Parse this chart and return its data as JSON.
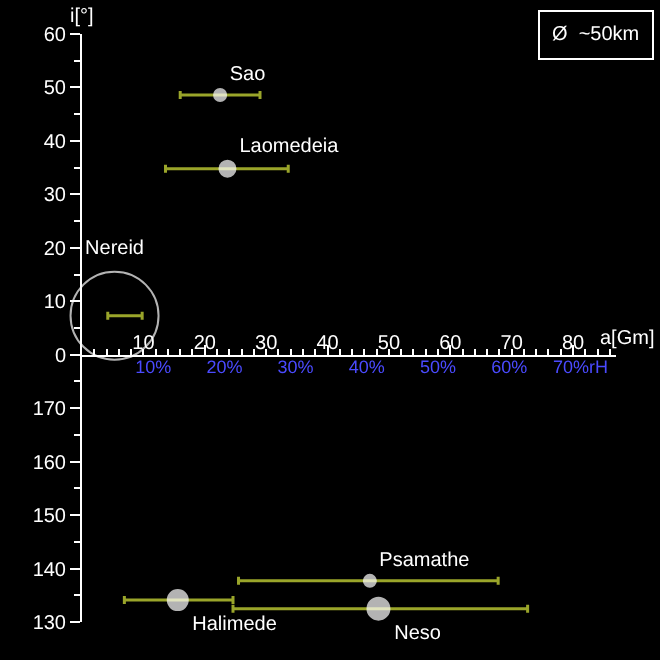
{
  "chart_data": [
    {
      "type": "bubble",
      "ylabel": "i[°]",
      "xlim": [
        0,
        87
      ],
      "ylim": [
        0,
        60
      ],
      "yticks": [
        0,
        10,
        20,
        30,
        40,
        50,
        60
      ],
      "tick_labels": "y",
      "series": [
        {
          "color": "#9aa52a",
          "x": [
            22.5,
            23.7,
            5.3
          ],
          "values": [
            48.6,
            34.8,
            7.3
          ],
          "sizes": [
            0.019,
            0.033,
            1
          ],
          "colors": [
            "#ffffff",
            "#ffffff",
            "#ffffff"
          ],
          "xerrors": [
            [
              16.0,
              29.0
            ],
            [
              13.6,
              33.6
            ],
            [
              4.2,
              9.8
            ]
          ],
          "value_labels": [
            "Sao",
            "Laomedeia",
            "Nereid"
          ]
        }
      ],
      "annotations": [
        "Ø  ~50km"
      ],
      "grid": false
    },
    {
      "type": "bubble",
      "xlabel": "a[Gm]",
      "xlim": [
        0,
        87
      ],
      "xticks": [
        10,
        20,
        30,
        40,
        50,
        60,
        70,
        80
      ],
      "x2lim": [
        0,
        75
      ],
      "x2ticks": [
        {
          "value": 10,
          "label": "10%"
        },
        {
          "value": 20,
          "label": "20%"
        },
        {
          "value": 30,
          "label": "30%"
        },
        {
          "value": 40,
          "label": "40%"
        },
        {
          "value": 50,
          "label": "50%"
        },
        {
          "value": 60,
          "label": "60%"
        },
        {
          "value": 70,
          "label": "70%rH"
        }
      ],
      "ylim": [
        130,
        180
      ],
      "yticks": [
        130,
        140,
        150,
        160,
        170
      ],
      "series": [
        {
          "color": "#9aa52a",
          "x": [
            15.6,
            46.9,
            48.3
          ],
          "values": [
            134.1,
            137.7,
            132.5
          ],
          "sizes": [
            0.83,
            0.3,
            1
          ],
          "colors": [
            "#ffffff",
            "#ffffff",
            "#ffffff"
          ],
          "xerrors": [
            [
              6.9,
              24.6
            ],
            [
              25.5,
              67.8
            ],
            [
              24.6,
              72.6
            ]
          ],
          "value_labels": [
            "Halimede",
            "Psamathe",
            "Neso"
          ]
        }
      ],
      "grid": false
    }
  ]
}
